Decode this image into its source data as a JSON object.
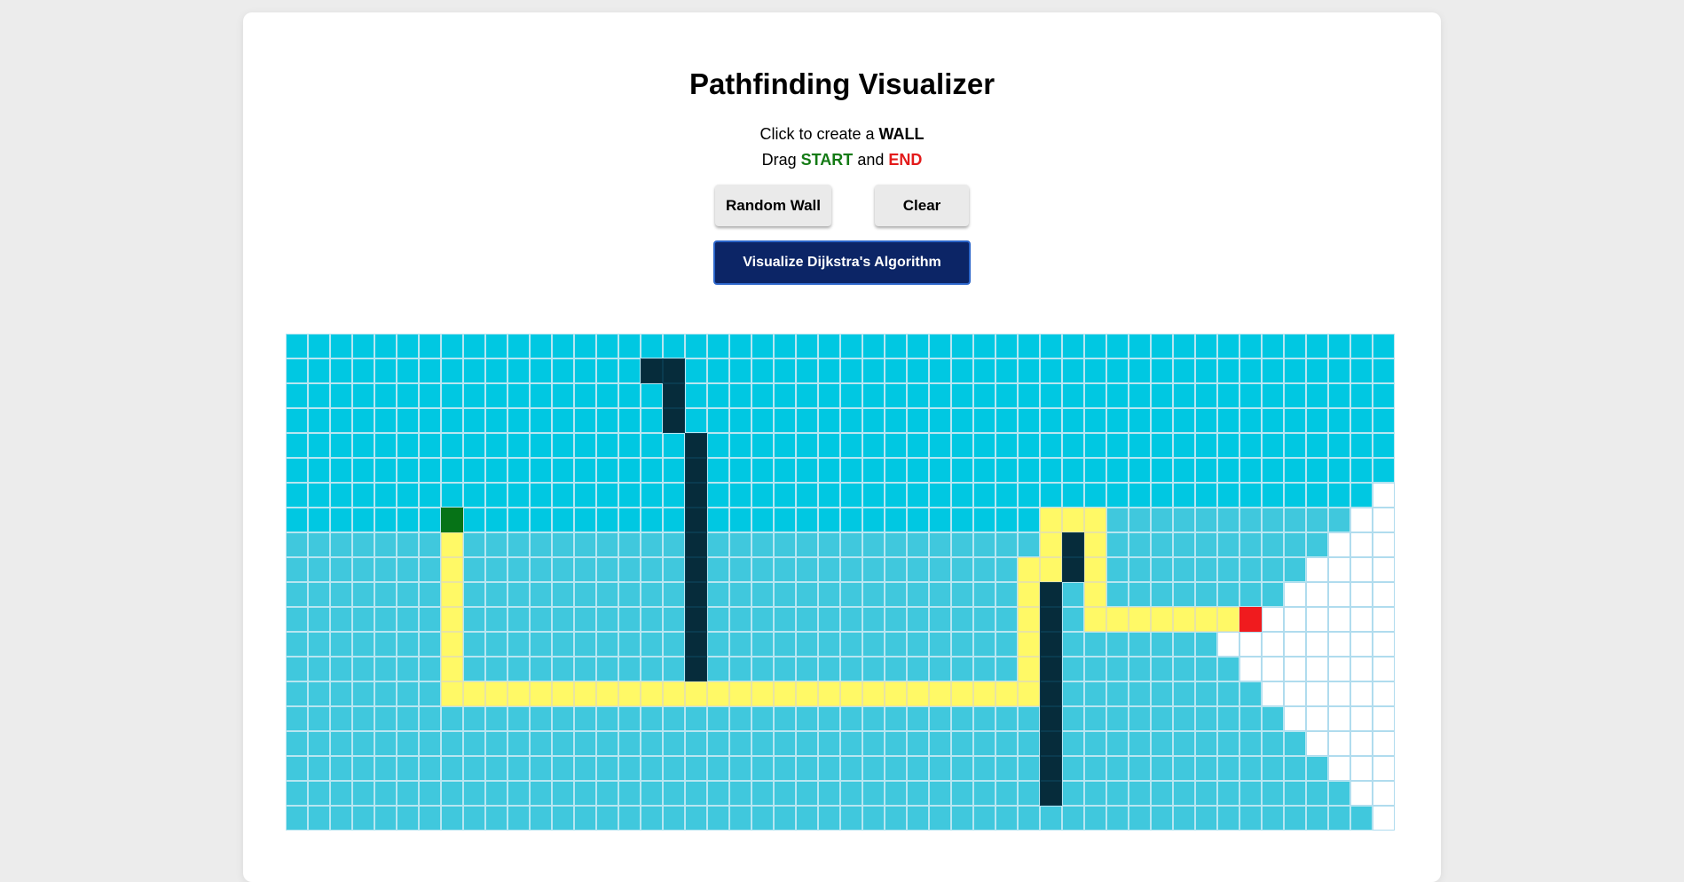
{
  "title": "Pathfinding Visualizer",
  "instructions": {
    "line1_prefix": "Click to create a",
    "wall_word": "WALL",
    "line2_prefix": "Drag",
    "start_word": "START",
    "and_word": "and",
    "end_word": "END"
  },
  "buttons": {
    "random_wall": "Random Wall",
    "clear": "Clear",
    "visualize": "Visualize Dijkstra's Algorithm"
  },
  "colors": {
    "visited_early": "#00c8e2",
    "visited_late": "#40c8dd",
    "unvisited": "#ffffff",
    "wall": "#062c3b",
    "path": "#fff966",
    "start": "#067317",
    "end": "#f01b1e",
    "visualize_button": "#0c2566"
  },
  "grid": {
    "rows": 20,
    "cols": 50,
    "legend": {
      "A": "visited_early",
      "B": "visited_late",
      "U": "unvisited",
      "W": "wall",
      "P": "path",
      "S": "start",
      "E": "end"
    },
    "cells": [
      "AAAAAAAAAAAAAAAAAAAAAAAAAAAAAAAAAAAAAAAAAAAAAAAAAA",
      "AAAAAAAAAAAAAAAAWWAAAAAAAAAAAAAAAAAAAAAAAAAAAAAAAA",
      "AAAAAAAAAAAAAAAAAWAAAAAAAAAAAAAAAAAAAAAAAAAAAAAAAA",
      "AAAAAAAAAAAAAAAAAWAAAAAAAAAAAAAAAAAAAAAAAAAAAAAAAA",
      "AAAAAAAAAAAAAAAAAAWAAAAAAAAAAAAAAAAAAAAAAAAAAAAAAA",
      "AAAAAAAAAAAAAAAAAAWAAAAAAAAAAAAAAAAAAAAAAAAAAAAAAA",
      "AAAAAAAAAAAAAAAAAAWAAAAAAAAAAAAAAAAAAAAAAAAAAAAAAU",
      "AAAAAAASAAAAAAAAAAWAAAAAAAAAAAAAAAPPPBBBBBBBBBBBUU",
      "BBBBBBBPBBBBBBBBBBWBBBBBBBBBBBBBBBPWPBBBBBBBBBBUUU",
      "BBBBBBBPBBBBBBBBBBWBBBBBBBBBBBBBBPPWPBBBBBBBBBUUUU",
      "BBBBBBBPBBBBBBBBBBWBBBBBBBBBBBBBBPWBPBBBBBBBBUUUUU",
      "BBBBBBBPBBBBBBBBBBWBBBBBBBBBBBBBBPWBPPPPPPPEUUUUUU",
      "BBBBBBBPBBBBBBBBBBWBBBBBBBBBBBBBBPWBBBBBBBUUUUUUUU",
      "BBBBBBBPBBBBBBBBBBWBBBBBBBBBBBBBBPWBBBBBBBBUUUUUUU",
      "BBBBBBBPPPPPPPPPPPPPPPPPPPPPPPPPPPWBBBBBBBBBUUUUUU",
      "BBBBBBBBBBBBBBBBBBBBBBBBBBBBBBBBBBWBBBBBBBBBBUUUUU",
      "BBBBBBBBBBBBBBBBBBBBBBBBBBBBBBBBBBWBBBBBBBBBBBUUUU",
      "BBBBBBBBBBBBBBBBBBBBBBBBBBBBBBBBBBWBBBBBBBBBBBBUUU",
      "BBBBBBBBBBBBBBBBBBBBBBBBBBBBBBBBBBWBBBBBBBBBBBBBUU",
      "BBBBBBBBBBBBBBBBBBBBBBBBBBBBBBBBBBBBBBBBBBBBBBBBBU"
    ]
  }
}
